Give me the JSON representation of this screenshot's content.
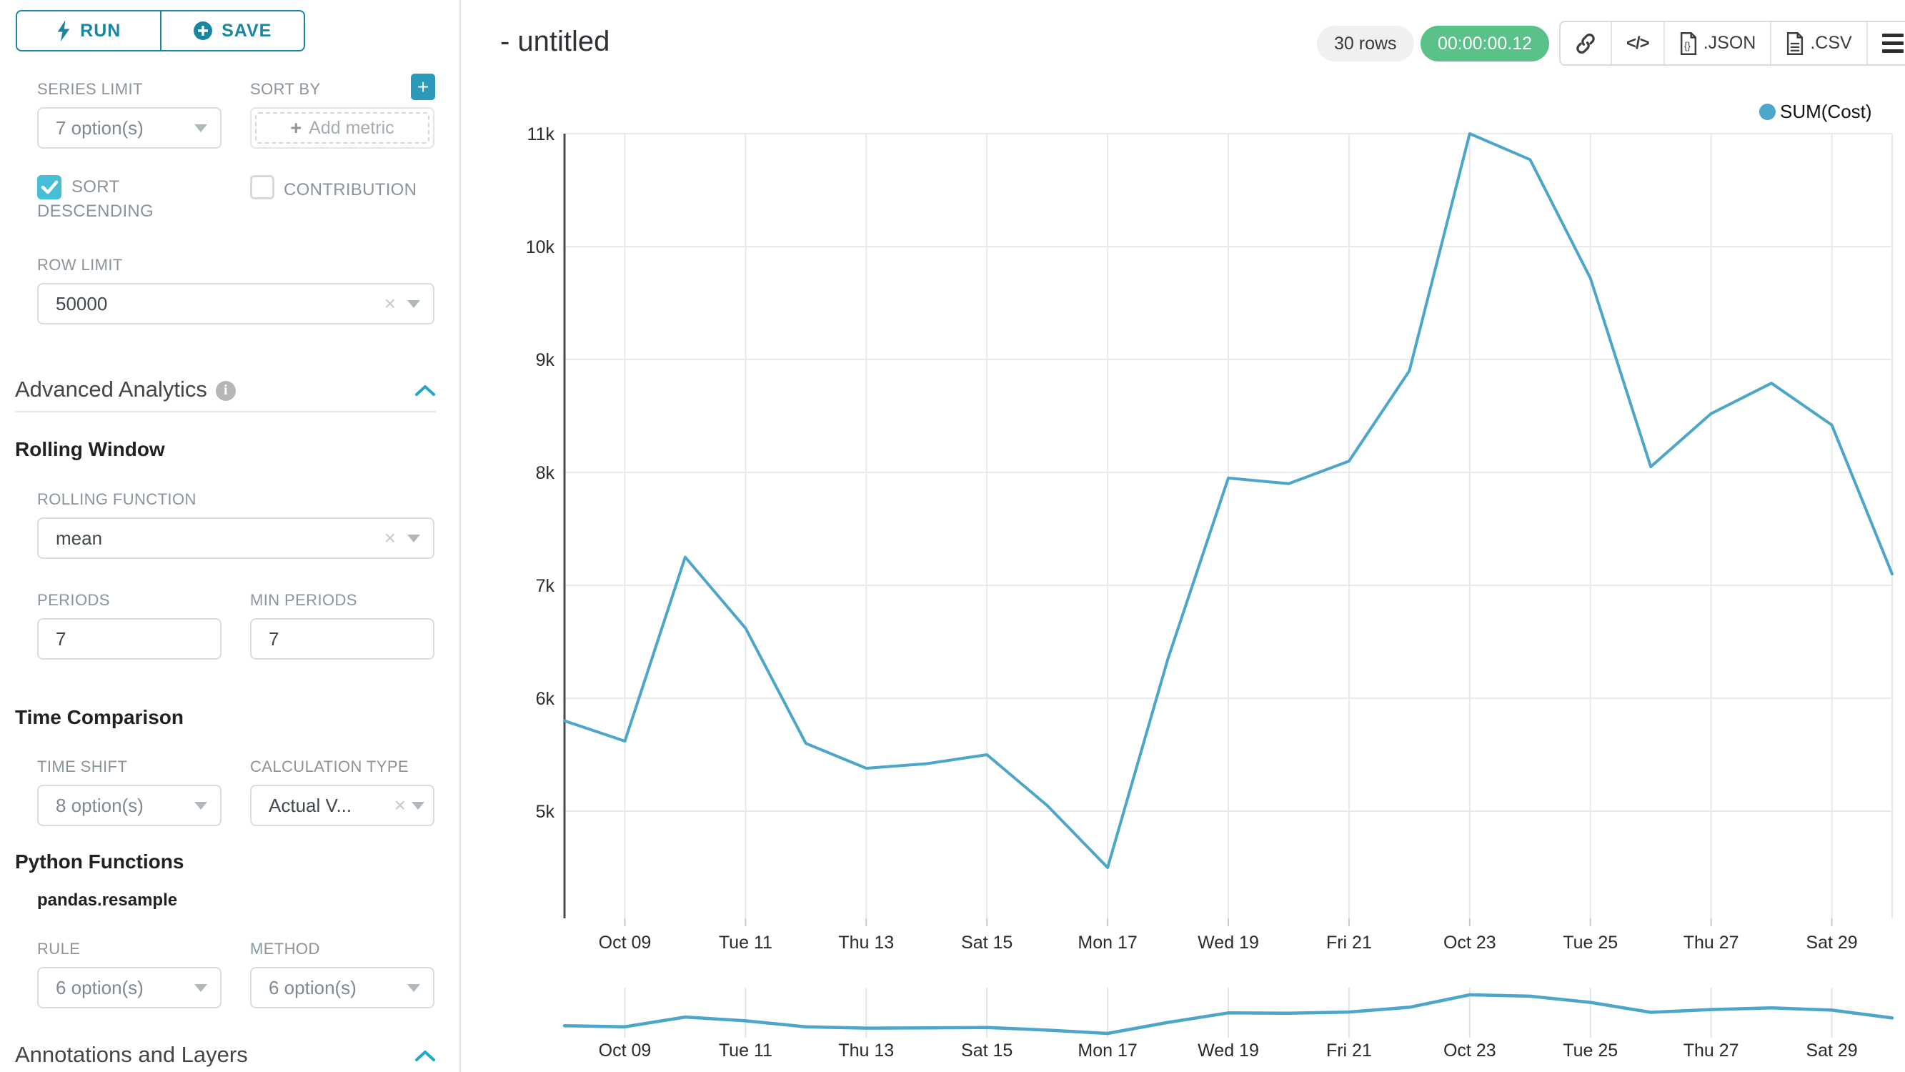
{
  "toolbar": {
    "run_label": "RUN",
    "save_label": "SAVE"
  },
  "panel": {
    "series_limit_label": "SERIES LIMIT",
    "series_limit_value": "7 option(s)",
    "sort_by_label": "SORT BY",
    "add_metric_label": "Add metric",
    "sort_descending_line1": "SORT",
    "sort_descending_line2": "DESCENDING",
    "contribution_label": "CONTRIBUTION",
    "row_limit_label": "ROW LIMIT",
    "row_limit_value": "50000",
    "advanced_analytics_title": "Advanced Analytics",
    "rolling_window_title": "Rolling Window",
    "rolling_function_label": "ROLLING FUNCTION",
    "rolling_function_value": "mean",
    "periods_label": "PERIODS",
    "periods_value": "7",
    "min_periods_label": "MIN PERIODS",
    "min_periods_value": "7",
    "time_comparison_title": "Time Comparison",
    "time_shift_label": "TIME SHIFT",
    "time_shift_value": "8 option(s)",
    "calculation_type_label": "CALCULATION TYPE",
    "calculation_type_value": "Actual V...",
    "python_functions_title": "Python Functions",
    "pandas_resample_label": "pandas.resample",
    "rule_label": "RULE",
    "rule_value": "6 option(s)",
    "method_label": "METHOD",
    "method_value": "6 option(s)",
    "annotations_title": "Annotations and Layers"
  },
  "header": {
    "title": "- untitled",
    "rows_badge": "30 rows",
    "timer_badge": "00:00:00.12",
    "code_glyph": "</>",
    "json_label": ".JSON",
    "csv_label": ".CSV"
  },
  "colors": {
    "primary": "#20a7c9",
    "primary_dark": "#1a85a0",
    "checkbox_checked": "#45bed6",
    "line": "#4ba6c9",
    "success_badge": "#5ac189",
    "grid": "#e9e9e9",
    "axis": "#4a4a4a"
  },
  "chart_data": {
    "type": "line",
    "title": "- untitled",
    "legend": [
      "SUM(Cost)"
    ],
    "legend_position": "top-right",
    "grid": true,
    "x": [
      "Oct 08",
      "Oct 09",
      "Oct 10",
      "Oct 11",
      "Oct 12",
      "Oct 13",
      "Oct 14",
      "Oct 15",
      "Oct 16",
      "Oct 17",
      "Oct 18",
      "Oct 19",
      "Oct 20",
      "Oct 21",
      "Oct 22",
      "Oct 23",
      "Oct 24",
      "Oct 25",
      "Oct 26",
      "Oct 27",
      "Oct 28",
      "Oct 29",
      "Oct 30"
    ],
    "tick_labels": [
      "Oct 09",
      "Tue 11",
      "Thu 13",
      "Sat 15",
      "Mon 17",
      "Wed 19",
      "Fri 21",
      "Oct 23",
      "Tue 25",
      "Thu 27",
      "Sat 29"
    ],
    "series": [
      {
        "name": "SUM(Cost)",
        "values": [
          5800,
          5620,
          7250,
          6620,
          5600,
          5380,
          5420,
          5500,
          5050,
          4500,
          6350,
          7950,
          7900,
          8100,
          8900,
          11000,
          10770,
          9720,
          8050,
          8520,
          8790,
          8420,
          7100
        ]
      }
    ],
    "ylabel": "",
    "ylim": [
      4050,
      11000
    ],
    "yticks": [
      {
        "v": 5000,
        "label": "5k"
      },
      {
        "v": 6000,
        "label": "6k"
      },
      {
        "v": 7000,
        "label": "7k"
      },
      {
        "v": 8000,
        "label": "8k"
      },
      {
        "v": 9000,
        "label": "9k"
      },
      {
        "v": 10000,
        "label": "10k"
      },
      {
        "v": 11000,
        "label": "11k"
      }
    ],
    "has_minimap": true
  }
}
